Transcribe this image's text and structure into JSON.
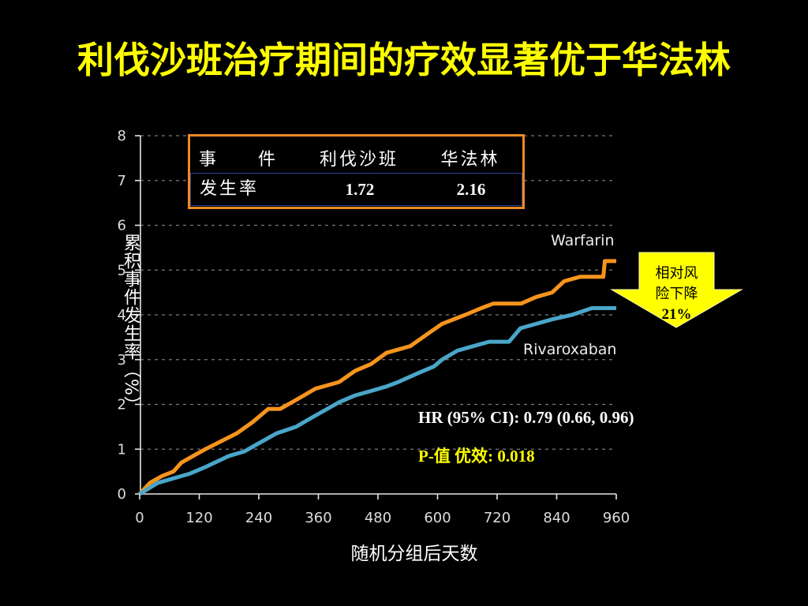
{
  "title": "利伐沙班治疗期间的疗效显著优于华法林",
  "event_table": {
    "header": [
      "事　　件",
      "利伐沙班",
      "华法林"
    ],
    "row": [
      "发生率",
      "1.72",
      "2.16"
    ]
  },
  "hr_text": "HR (95% CI): 0.79 (0.66, 0.96)",
  "p_value_text": "P-值 优效: 0.018",
  "risk_reduction": {
    "lines": [
      "相对风",
      "险下降",
      "21%"
    ]
  },
  "colors": {
    "background": "#000000",
    "title": "#ffff00",
    "table_border": "#ef8a22",
    "table_row_border": "#2e3f9e",
    "p_value": "#ffff00",
    "arrow": "#ffff00"
  },
  "chart_data": {
    "type": "line",
    "xlabel": "随机分组后天数",
    "ylabel": "累积事件发生率（%）",
    "xlim": [
      0,
      960
    ],
    "ylim": [
      0,
      8
    ],
    "xticks": [
      0,
      120,
      240,
      360,
      480,
      600,
      720,
      840,
      960
    ],
    "yticks": [
      0,
      1,
      2,
      3,
      4,
      5,
      6,
      7,
      8
    ],
    "grid": true,
    "series": [
      {
        "name": "Warfarin",
        "color": "#f7941d",
        "points": [
          [
            0,
            0
          ],
          [
            21,
            0.25
          ],
          [
            45,
            0.4
          ],
          [
            68,
            0.5
          ],
          [
            84,
            0.7
          ],
          [
            132,
            1.0
          ],
          [
            195,
            1.35
          ],
          [
            227,
            1.6
          ],
          [
            259,
            1.9
          ],
          [
            283,
            1.9
          ],
          [
            323,
            2.15
          ],
          [
            354,
            2.35
          ],
          [
            402,
            2.5
          ],
          [
            434,
            2.75
          ],
          [
            466,
            2.9
          ],
          [
            497,
            3.15
          ],
          [
            545,
            3.3
          ],
          [
            577,
            3.55
          ],
          [
            609,
            3.8
          ],
          [
            656,
            4.0
          ],
          [
            688,
            4.15
          ],
          [
            712,
            4.25
          ],
          [
            768,
            4.25
          ],
          [
            799,
            4.4
          ],
          [
            831,
            4.5
          ],
          [
            855,
            4.75
          ],
          [
            887,
            4.85
          ],
          [
            934,
            4.85
          ],
          [
            937,
            5.2
          ],
          [
            960,
            5.2
          ]
        ]
      },
      {
        "name": "Rivaroxaban",
        "color": "#4aa6c9",
        "points": [
          [
            0,
            0
          ],
          [
            37,
            0.25
          ],
          [
            100,
            0.45
          ],
          [
            132,
            0.6
          ],
          [
            180,
            0.85
          ],
          [
            211,
            0.95
          ],
          [
            243,
            1.15
          ],
          [
            275,
            1.35
          ],
          [
            315,
            1.5
          ],
          [
            346,
            1.7
          ],
          [
            370,
            1.85
          ],
          [
            402,
            2.05
          ],
          [
            434,
            2.2
          ],
          [
            466,
            2.3
          ],
          [
            497,
            2.4
          ],
          [
            521,
            2.5
          ],
          [
            561,
            2.7
          ],
          [
            593,
            2.85
          ],
          [
            609,
            3.0
          ],
          [
            640,
            3.2
          ],
          [
            672,
            3.3
          ],
          [
            704,
            3.4
          ],
          [
            744,
            3.4
          ],
          [
            767,
            3.7
          ],
          [
            799,
            3.8
          ],
          [
            831,
            3.9
          ],
          [
            871,
            4.0
          ],
          [
            911,
            4.15
          ],
          [
            960,
            4.15
          ]
        ]
      }
    ]
  }
}
